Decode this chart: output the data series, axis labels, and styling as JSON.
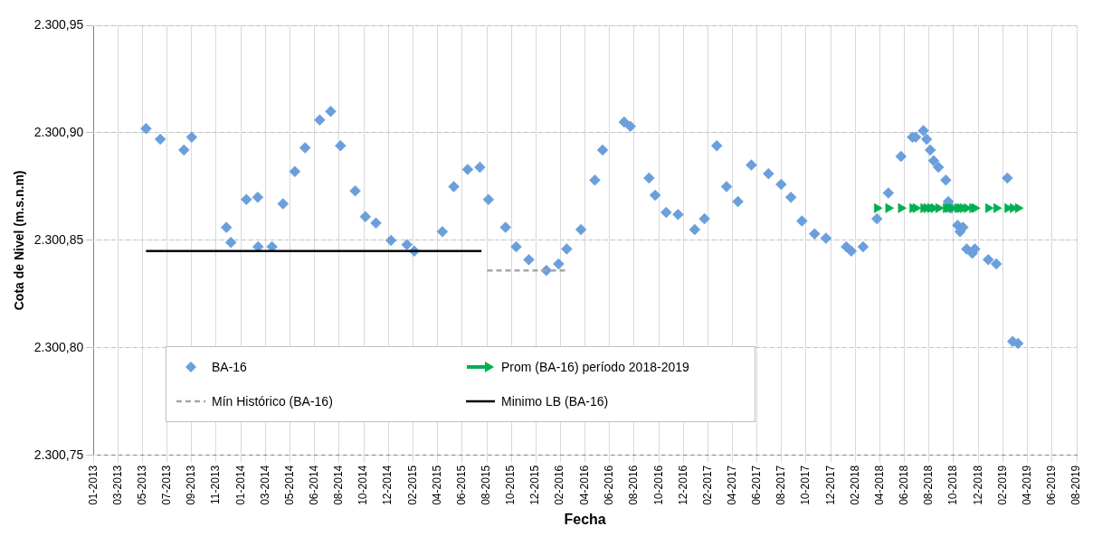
{
  "chart_data": {
    "type": "scatter",
    "xlabel": "Fecha",
    "ylabel": "Cota de Nivel (m.s.n.m)",
    "xlim": [
      "2013-01-04",
      "2019-08-13"
    ],
    "xticks": [
      {
        "value": "2013-01-04",
        "label": "01-2013"
      },
      {
        "value": "2013-03-05",
        "label": "03-2013"
      },
      {
        "value": "2013-05-04",
        "label": "05-2013"
      },
      {
        "value": "2013-07-04",
        "label": "07-2013"
      },
      {
        "value": "2013-09-02",
        "label": "09-2013"
      },
      {
        "value": "2013-11-01",
        "label": "11-2013"
      },
      {
        "value": "2014-01-01",
        "label": "01-2014"
      },
      {
        "value": "2014-03-02",
        "label": "03-2014"
      },
      {
        "value": "2014-05-01",
        "label": "05-2014"
      },
      {
        "value": "2014-06-30",
        "label": "06-2014"
      },
      {
        "value": "2014-08-30",
        "label": "08-2014"
      },
      {
        "value": "2014-10-29",
        "label": "10-2014"
      },
      {
        "value": "2014-12-28",
        "label": "12-2014"
      },
      {
        "value": "2015-02-27",
        "label": "02-2015"
      },
      {
        "value": "2015-04-28",
        "label": "04-2015"
      },
      {
        "value": "2015-06-27",
        "label": "06-2015"
      },
      {
        "value": "2015-08-27",
        "label": "08-2015"
      },
      {
        "value": "2015-10-26",
        "label": "10-2015"
      },
      {
        "value": "2015-12-25",
        "label": "12-2015"
      },
      {
        "value": "2016-02-23",
        "label": "02-2016"
      },
      {
        "value": "2016-04-24",
        "label": "04-2016"
      },
      {
        "value": "2016-06-23",
        "label": "06-2016"
      },
      {
        "value": "2016-08-22",
        "label": "08-2016"
      },
      {
        "value": "2016-10-22",
        "label": "10-2016"
      },
      {
        "value": "2016-12-21",
        "label": "12-2016"
      },
      {
        "value": "2017-02-19",
        "label": "02-2017"
      },
      {
        "value": "2017-04-21",
        "label": "04-2017"
      },
      {
        "value": "2017-06-20",
        "label": "06-2017"
      },
      {
        "value": "2017-08-19",
        "label": "08-2017"
      },
      {
        "value": "2017-10-18",
        "label": "10-2017"
      },
      {
        "value": "2017-12-18",
        "label": "12-2017"
      },
      {
        "value": "2018-02-16",
        "label": "02-2018"
      },
      {
        "value": "2018-04-17",
        "label": "04-2018"
      },
      {
        "value": "2018-06-17",
        "label": "06-2018"
      },
      {
        "value": "2018-08-16",
        "label": "08-2018"
      },
      {
        "value": "2018-10-15",
        "label": "10-2018"
      },
      {
        "value": "2018-12-15",
        "label": "12-2018"
      },
      {
        "value": "2019-02-13",
        "label": "02-2019"
      },
      {
        "value": "2019-04-14",
        "label": "04-2019"
      },
      {
        "value": "2019-06-13",
        "label": "06-2019"
      },
      {
        "value": "2019-08-13",
        "label": "08-2019"
      }
    ],
    "ylim": [
      2300.75,
      2300.95
    ],
    "yticks": [
      {
        "value": 2300.75,
        "label": "2.300,75"
      },
      {
        "value": 2300.8,
        "label": "2.300,80"
      },
      {
        "value": 2300.85,
        "label": "2.300,85"
      },
      {
        "value": 2300.9,
        "label": "2.300,90"
      },
      {
        "value": 2300.95,
        "label": "2.300,95"
      }
    ],
    "grid": true,
    "legend": "bottom left",
    "series": [
      {
        "name": "BA-16",
        "marker": "diamond",
        "color": "#6a9fdc",
        "x": [
          "2013-05-13",
          "2013-06-17",
          "2013-08-14",
          "2013-09-02",
          "2013-11-26",
          "2013-12-07",
          "2014-01-14",
          "2014-02-11",
          "2014-02-12",
          "2014-03-18",
          "2014-04-14",
          "2014-05-13",
          "2014-06-07",
          "2014-07-13",
          "2014-08-09",
          "2014-09-02",
          "2014-10-08",
          "2014-11-02",
          "2014-11-28",
          "2015-01-04",
          "2015-02-12",
          "2015-03-02",
          "2015-05-10",
          "2015-06-07",
          "2015-07-11",
          "2015-08-10",
          "2015-08-31",
          "2015-10-12",
          "2015-11-07",
          "2015-12-08",
          "2016-01-20",
          "2016-02-19",
          "2016-03-10",
          "2016-04-14",
          "2016-05-18",
          "2016-06-06",
          "2016-07-29",
          "2016-08-13",
          "2016-09-28",
          "2016-10-13",
          "2016-11-09",
          "2016-12-08",
          "2017-01-18",
          "2017-02-11",
          "2017-03-13",
          "2017-04-06",
          "2017-05-04",
          "2017-06-06",
          "2017-07-18",
          "2017-08-18",
          "2017-09-11",
          "2017-10-08",
          "2017-11-08",
          "2017-12-06",
          "2018-01-25",
          "2018-02-06",
          "2018-03-07",
          "2018-04-10",
          "2018-05-08",
          "2018-06-08",
          "2018-07-06",
          "2018-07-14",
          "2018-08-02",
          "2018-08-10",
          "2018-08-19",
          "2018-08-27",
          "2018-09-08",
          "2018-09-26",
          "2018-10-02",
          "2018-10-10",
          "2018-10-25",
          "2018-10-31",
          "2018-11-07",
          "2018-11-16",
          "2018-11-30",
          "2018-12-06",
          "2019-01-08",
          "2019-01-28",
          "2019-02-24",
          "2019-03-09",
          "2019-03-22"
        ],
        "values": [
          2300.902,
          2300.897,
          2300.892,
          2300.898,
          2300.856,
          2300.849,
          2300.869,
          2300.87,
          2300.847,
          2300.847,
          2300.867,
          2300.882,
          2300.893,
          2300.906,
          2300.91,
          2300.894,
          2300.873,
          2300.861,
          2300.858,
          2300.85,
          2300.848,
          2300.845,
          2300.854,
          2300.875,
          2300.883,
          2300.884,
          2300.869,
          2300.856,
          2300.847,
          2300.841,
          2300.836,
          2300.839,
          2300.846,
          2300.855,
          2300.878,
          2300.892,
          2300.905,
          2300.903,
          2300.879,
          2300.871,
          2300.863,
          2300.862,
          2300.855,
          2300.86,
          2300.894,
          2300.875,
          2300.868,
          2300.885,
          2300.881,
          2300.876,
          2300.87,
          2300.859,
          2300.853,
          2300.851,
          2300.847,
          2300.845,
          2300.847,
          2300.86,
          2300.872,
          2300.889,
          2300.898,
          2300.898,
          2300.901,
          2300.897,
          2300.892,
          2300.887,
          2300.884,
          2300.878,
          2300.868,
          2300.865,
          2300.857,
          2300.854,
          2300.856,
          2300.846,
          2300.844,
          2300.846,
          2300.841,
          2300.839,
          2300.879,
          2300.803,
          2300.802
        ]
      },
      {
        "name": "Prom (BA-16) período 2018-2019",
        "marker": "triangle",
        "color": "#00b050",
        "x": [
          "2018-04-10",
          "2018-05-08",
          "2018-06-08",
          "2018-07-06",
          "2018-07-14",
          "2018-08-02",
          "2018-08-10",
          "2018-08-19",
          "2018-08-27",
          "2018-09-08",
          "2018-09-26",
          "2018-10-02",
          "2018-10-10",
          "2018-10-25",
          "2018-10-31",
          "2018-11-07",
          "2018-11-16",
          "2018-11-30",
          "2018-12-06",
          "2019-01-08",
          "2019-01-28",
          "2019-02-24",
          "2019-03-09",
          "2019-03-22"
        ],
        "values": [
          2300.865,
          2300.865,
          2300.865,
          2300.865,
          2300.865,
          2300.865,
          2300.865,
          2300.865,
          2300.865,
          2300.865,
          2300.865,
          2300.865,
          2300.865,
          2300.865,
          2300.865,
          2300.865,
          2300.865,
          2300.865,
          2300.865,
          2300.865,
          2300.865,
          2300.865,
          2300.865,
          2300.865
        ]
      },
      {
        "name": "Mín Histórico (BA-16)",
        "type": "line",
        "marker": "none",
        "line_style": "dashed",
        "color": "#a6a6a6",
        "x": [
          "2015-08-28",
          "2016-03-13"
        ],
        "values": [
          2300.836,
          2300.836
        ]
      },
      {
        "name": "Minimo LB (BA-16)",
        "type": "line",
        "marker": "none",
        "line_style": "solid",
        "color": "#000000",
        "x": [
          "2013-05-13",
          "2015-08-14"
        ],
        "values": [
          2300.845,
          2300.845
        ]
      }
    ]
  }
}
